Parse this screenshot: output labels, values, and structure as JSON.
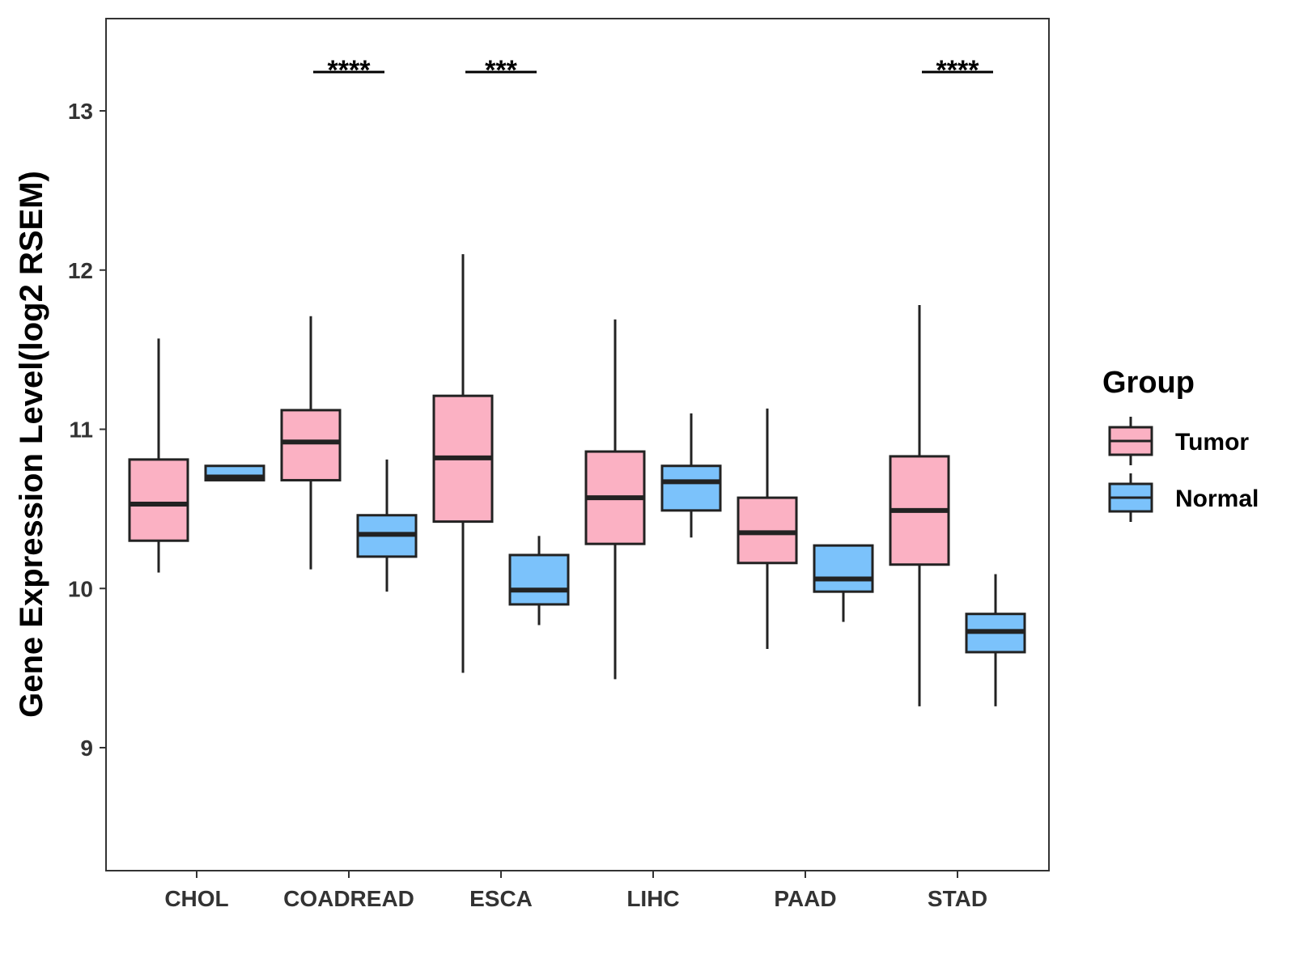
{
  "chart_data": {
    "type": "boxplot",
    "title": "",
    "xlabel": "",
    "ylabel": "Gene Expression Level(log2 RSEM)",
    "ylim": [
      8.3,
      13.6
    ],
    "yticks": [
      9,
      10,
      11,
      12,
      13
    ],
    "categories": [
      "CHOL",
      "COADREAD",
      "ESCA",
      "LIHC",
      "PAAD",
      "STAD"
    ],
    "legend": {
      "title": "Group",
      "position": "right"
    },
    "series": [
      {
        "name": "Tumor",
        "color": "#fbb1c3",
        "boxes": [
          {
            "min": 10.1,
            "q1": 10.3,
            "median": 10.53,
            "q3": 10.81,
            "max": 11.57
          },
          {
            "min": 10.12,
            "q1": 10.68,
            "median": 10.92,
            "q3": 11.12,
            "max": 11.71
          },
          {
            "min": 9.47,
            "q1": 10.42,
            "median": 10.82,
            "q3": 11.21,
            "max": 12.1
          },
          {
            "min": 9.43,
            "q1": 10.28,
            "median": 10.57,
            "q3": 10.86,
            "max": 11.69
          },
          {
            "min": 9.62,
            "q1": 10.16,
            "median": 10.35,
            "q3": 10.57,
            "max": 11.13
          },
          {
            "min": 9.26,
            "q1": 10.15,
            "median": 10.49,
            "q3": 10.83,
            "max": 11.78
          }
        ]
      },
      {
        "name": "Normal",
        "color": "#7bc2fb",
        "boxes": [
          {
            "min": 10.68,
            "q1": 10.68,
            "median": 10.7,
            "q3": 10.77,
            "max": 10.77
          },
          {
            "min": 9.98,
            "q1": 10.2,
            "median": 10.34,
            "q3": 10.46,
            "max": 10.81
          },
          {
            "min": 9.77,
            "q1": 9.9,
            "median": 9.99,
            "q3": 10.21,
            "max": 10.33
          },
          {
            "min": 10.32,
            "q1": 10.49,
            "median": 10.67,
            "q3": 10.77,
            "max": 11.1
          },
          {
            "min": 9.79,
            "q1": 9.98,
            "median": 10.06,
            "q3": 10.27,
            "max": 10.27
          },
          {
            "min": 9.26,
            "q1": 9.6,
            "median": 9.73,
            "q3": 9.84,
            "max": 10.09
          }
        ]
      }
    ],
    "significance": [
      {
        "category": "COADREAD",
        "label": "****",
        "y": 13.32
      },
      {
        "category": "ESCA",
        "label": "***",
        "y": 13.32
      },
      {
        "category": "STAD",
        "label": "****",
        "y": 13.32
      }
    ]
  }
}
